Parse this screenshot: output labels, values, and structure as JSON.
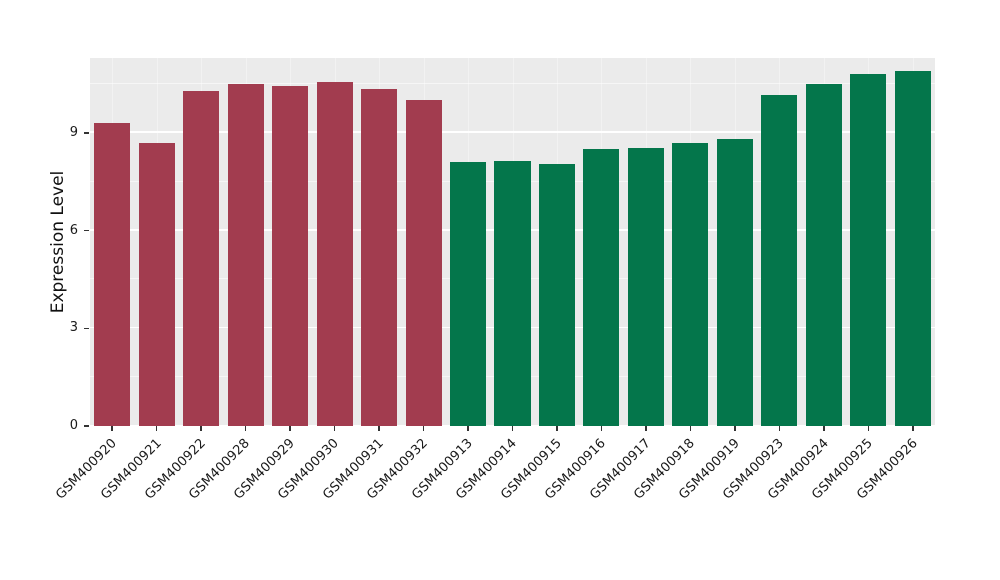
{
  "figure": {
    "background": "#FFFFFF",
    "panel_background": "#EBEBEB",
    "grid_major_color": "#FFFFFF",
    "tick_color": "#333333",
    "text_color": "#1A1A1A"
  },
  "chart_data": {
    "type": "bar",
    "title": "",
    "xlabel": "",
    "ylabel": "Expression Level",
    "ylim": [
      0,
      11.3
    ],
    "yticks": [
      0,
      3,
      6,
      9
    ],
    "yticks_minor": [
      1.5,
      4.5,
      7.5,
      10.5
    ],
    "grid": "on",
    "legend": "none",
    "categories": [
      "GSM400920",
      "GSM400921",
      "GSM400922",
      "GSM400928",
      "GSM400929",
      "GSM400930",
      "GSM400931",
      "GSM400932",
      "GSM400913",
      "GSM400914",
      "GSM400915",
      "GSM400916",
      "GSM400917",
      "GSM400918",
      "GSM400919",
      "GSM400923",
      "GSM400924",
      "GSM400925",
      "GSM400926"
    ],
    "values": [
      9.3,
      8.7,
      10.3,
      10.5,
      10.45,
      10.55,
      10.35,
      10.0,
      8.1,
      8.15,
      8.05,
      8.5,
      8.55,
      8.7,
      8.8,
      10.15,
      10.5,
      10.8,
      10.9
    ],
    "bar_groups": [
      "group1",
      "group1",
      "group1",
      "group1",
      "group1",
      "group1",
      "group1",
      "group1",
      "group2",
      "group2",
      "group2",
      "group2",
      "group2",
      "group2",
      "group2",
      "group2",
      "group2",
      "group2",
      "group2"
    ],
    "group_colors": {
      "group1": "#A23C4F",
      "group2": "#04764B"
    }
  }
}
